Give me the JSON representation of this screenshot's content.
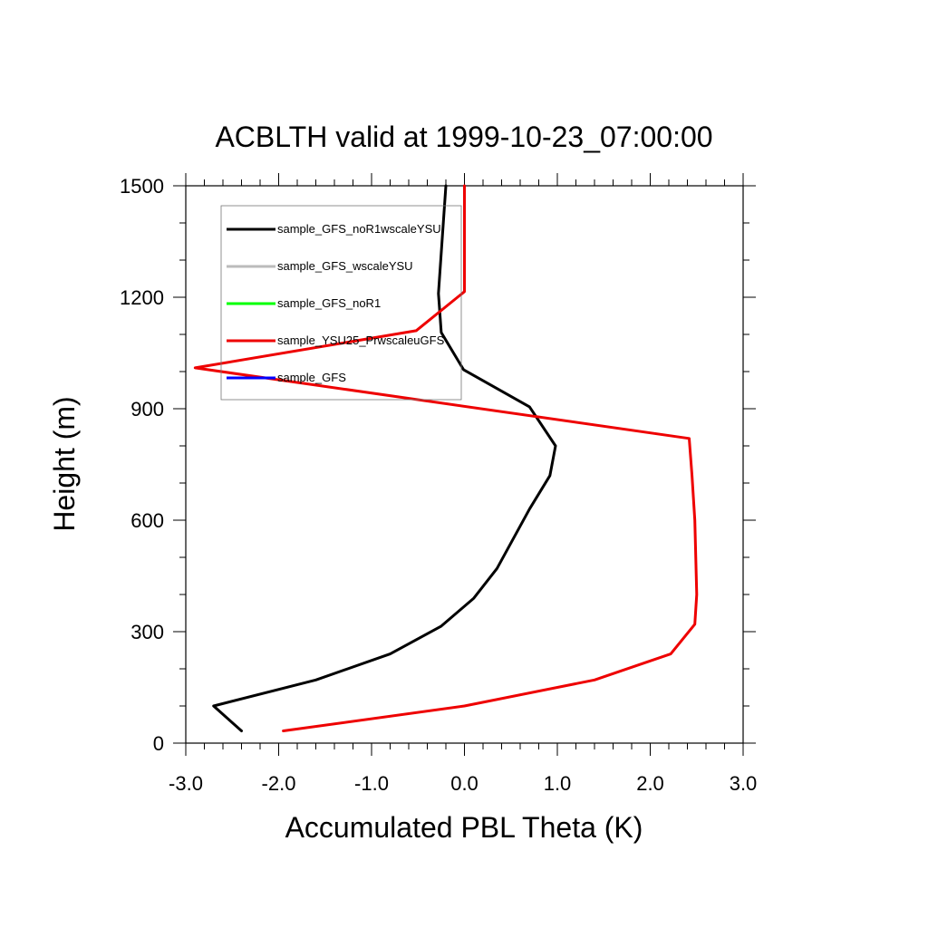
{
  "chart_data": {
    "type": "line",
    "title": "ACBLTH valid at 1999-10-23_07:00:00",
    "xlabel": "Accumulated PBL Theta (K)",
    "ylabel": "Height (m)",
    "xlim": [
      -3.0,
      3.0
    ],
    "ylim": [
      0,
      1500
    ],
    "x_ticks": [
      -3.0,
      -2.0,
      -1.0,
      0.0,
      1.0,
      2.0,
      3.0
    ],
    "x_tick_labels": [
      "-3.0",
      "-2.0",
      "-1.0",
      "0.0",
      "1.0",
      "2.0",
      "3.0"
    ],
    "y_ticks": [
      0,
      300,
      600,
      900,
      1200,
      1500
    ],
    "y_tick_labels": [
      "0",
      "300",
      "600",
      "900",
      "1200",
      "1500"
    ],
    "legend_position": "top-left",
    "grid": false,
    "series": [
      {
        "name": "sample_GFS_noR1wscaleYSU",
        "color": "#000000",
        "x": [
          -2.4,
          -2.7,
          -1.6,
          -0.8,
          -0.25,
          0.1,
          0.35,
          0.7,
          0.92,
          0.98,
          0.7,
          -0.01,
          -0.25,
          -0.28,
          -0.2
        ],
        "y": [
          33,
          100,
          170,
          240,
          315,
          390,
          470,
          630,
          720,
          800,
          905,
          1005,
          1105,
          1210,
          1500
        ]
      },
      {
        "name": "sample_GFS_wscaleYSU",
        "color": "#bbbbbb",
        "x": [],
        "y": []
      },
      {
        "name": "sample_GFS_noR1",
        "color": "#00ff00",
        "x": [],
        "y": []
      },
      {
        "name": "sample_YSU25_PrwscaleuGFS",
        "color": "#ee0000",
        "x": [
          -1.95,
          0.0,
          1.4,
          2.22,
          2.48,
          2.5,
          2.48,
          2.45,
          2.42,
          -2.9,
          -0.52,
          0.0,
          0.0
        ],
        "y": [
          33,
          100,
          170,
          240,
          320,
          400,
          600,
          720,
          820,
          1010,
          1110,
          1215,
          1500
        ]
      },
      {
        "name": "sample_GFS",
        "color": "#0000ff",
        "x": [],
        "y": []
      }
    ]
  }
}
